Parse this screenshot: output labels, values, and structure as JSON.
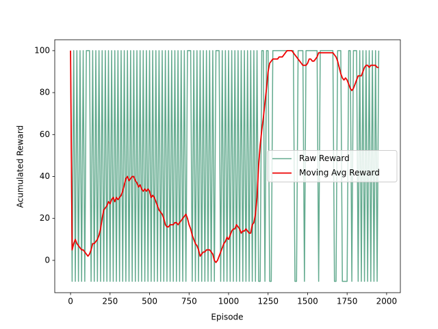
{
  "chart_data": {
    "type": "line",
    "xlabel": "Episode",
    "ylabel": "Acumulated Reward",
    "x": [
      0,
      10,
      20,
      30,
      40,
      50,
      60,
      70,
      80,
      90,
      100,
      110,
      120,
      130,
      140,
      150,
      160,
      170,
      180,
      190,
      200,
      210,
      220,
      230,
      240,
      250,
      260,
      270,
      280,
      290,
      300,
      310,
      320,
      330,
      340,
      350,
      360,
      370,
      380,
      390,
      400,
      410,
      420,
      430,
      440,
      450,
      460,
      470,
      480,
      490,
      500,
      510,
      520,
      530,
      540,
      550,
      560,
      570,
      580,
      590,
      600,
      610,
      620,
      630,
      640,
      650,
      660,
      670,
      680,
      690,
      700,
      710,
      720,
      730,
      740,
      750,
      760,
      770,
      780,
      790,
      800,
      810,
      820,
      830,
      840,
      850,
      860,
      870,
      880,
      890,
      900,
      910,
      920,
      930,
      940,
      950,
      960,
      970,
      980,
      990,
      1000,
      1010,
      1020,
      1030,
      1040,
      1050,
      1060,
      1070,
      1080,
      1090,
      1100,
      1110,
      1120,
      1130,
      1140,
      1150,
      1160,
      1170,
      1180,
      1190,
      1200,
      1210,
      1220,
      1230,
      1240,
      1250,
      1260,
      1270,
      1280,
      1290,
      1300,
      1310,
      1320,
      1330,
      1340,
      1350,
      1360,
      1370,
      1380,
      1390,
      1400,
      1410,
      1420,
      1430,
      1440,
      1450,
      1460,
      1470,
      1480,
      1490,
      1500,
      1510,
      1520,
      1530,
      1540,
      1550,
      1560,
      1570,
      1580,
      1590,
      1600,
      1610,
      1620,
      1630,
      1640,
      1650,
      1660,
      1670,
      1680,
      1690,
      1700,
      1710,
      1720,
      1730,
      1740,
      1750,
      1760,
      1770,
      1780,
      1790,
      1800,
      1810,
      1820,
      1830,
      1840,
      1850,
      1860,
      1870,
      1880,
      1890,
      1900,
      1910,
      1920,
      1930,
      1940,
      1950
    ],
    "series": [
      {
        "name": "Raw Reward",
        "color": "#62aa8e",
        "width": 1.5,
        "values": [
          100,
          -10,
          100,
          -10,
          100,
          -10,
          100,
          -10,
          100,
          -10,
          100,
          100,
          100,
          -10,
          100,
          -10,
          100,
          -10,
          100,
          -10,
          100,
          -10,
          100,
          -10,
          100,
          -10,
          100,
          -10,
          100,
          -10,
          100,
          -10,
          100,
          -10,
          100,
          -10,
          100,
          -10,
          100,
          -10,
          100,
          -10,
          100,
          -10,
          100,
          -10,
          100,
          -10,
          100,
          -10,
          100,
          -10,
          100,
          -10,
          100,
          -10,
          100,
          -10,
          100,
          -10,
          100,
          -10,
          100,
          -10,
          100,
          -10,
          100,
          -10,
          100,
          -10,
          100,
          -10,
          100,
          -10,
          100,
          100,
          100,
          -10,
          100,
          -10,
          100,
          -10,
          100,
          -10,
          100,
          -10,
          100,
          -10,
          100,
          -10,
          100,
          -10,
          100,
          100,
          100,
          -10,
          100,
          -10,
          100,
          -10,
          100,
          -10,
          100,
          -10,
          100,
          -10,
          100,
          -10,
          100,
          -10,
          100,
          -10,
          100,
          -10,
          100,
          -10,
          100,
          -10,
          100,
          -10,
          -10,
          100,
          100,
          -10,
          100,
          100,
          -10,
          -10,
          100,
          100,
          100,
          100,
          100,
          100,
          100,
          100,
          100,
          100,
          100,
          100,
          100,
          100,
          -10,
          -10,
          100,
          100,
          100,
          100,
          -10,
          100,
          100,
          100,
          100,
          100,
          100,
          100,
          100,
          -10,
          100,
          100,
          100,
          100,
          100,
          100,
          100,
          100,
          100,
          -10,
          -10,
          100,
          100,
          100,
          -10,
          -10,
          -10,
          -10,
          100,
          100,
          -10,
          100,
          100,
          100,
          -10,
          100,
          -10,
          100,
          -10,
          100,
          -10,
          100,
          -10,
          100,
          -10,
          100,
          -10,
          100
        ]
      },
      {
        "name": "Moving Avg Reward",
        "color": "#ee0000",
        "width": 1.8,
        "values": [
          100,
          5,
          8,
          10,
          8,
          7,
          6,
          5,
          5,
          4,
          3,
          2,
          3,
          5,
          8,
          8,
          9,
          10,
          12,
          15,
          20,
          24,
          25,
          26,
          28,
          27,
          29,
          30,
          28,
          30,
          29,
          30,
          31,
          33,
          36,
          39,
          40,
          38,
          39,
          40,
          40,
          38,
          37,
          35,
          36,
          34,
          33,
          34,
          33,
          34,
          33,
          30,
          31,
          30,
          28,
          26,
          24,
          23,
          22,
          20,
          17,
          16,
          16,
          17,
          17,
          17,
          18,
          18,
          17,
          18,
          19,
          20,
          21,
          22,
          20,
          17,
          15,
          12,
          10,
          8,
          7,
          5,
          2,
          3,
          4,
          4,
          5,
          5,
          5,
          4,
          3,
          0,
          -1,
          0,
          2,
          4,
          6,
          8,
          9,
          11,
          10,
          12,
          14,
          15,
          15,
          17,
          16,
          15,
          13,
          14,
          14,
          15,
          14,
          13,
          13,
          17,
          18,
          22,
          30,
          45,
          55,
          62,
          68,
          75,
          82,
          90,
          94,
          95,
          96,
          96,
          96,
          96,
          97,
          97,
          97,
          98,
          99,
          100,
          100,
          100,
          100,
          99,
          98,
          97,
          96,
          95,
          94,
          93,
          93,
          93,
          94,
          96,
          96,
          95,
          95,
          96,
          97,
          99,
          99,
          99,
          99,
          99,
          99,
          99,
          99,
          99,
          99,
          98,
          97,
          95,
          92,
          89,
          87,
          86,
          87,
          86,
          84,
          82,
          81,
          82,
          84,
          86,
          88,
          88,
          88,
          90,
          92,
          93,
          93,
          92,
          93,
          93,
          93,
          93,
          92,
          92
        ]
      }
    ],
    "xlim": [
      -100,
      2087
    ],
    "ylim": [
      -15.4,
      105.2
    ],
    "xticks": [
      0,
      250,
      500,
      750,
      1000,
      1250,
      1500,
      1750,
      2000
    ],
    "yticks": [
      0,
      20,
      40,
      60,
      80,
      100
    ],
    "legend": "center right"
  }
}
